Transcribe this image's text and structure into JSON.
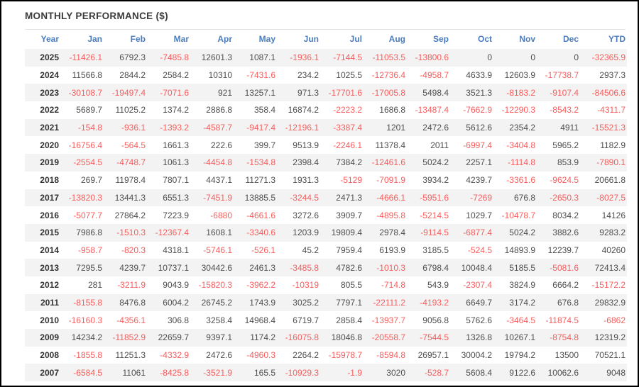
{
  "title": "MONTHLY PERFORMANCE ($)",
  "colors": {
    "header_text": "#4b7dbe",
    "negative_value": "#f75d5d",
    "positive_value": "#4e4e4e",
    "row_stripe": "#f3f3f3"
  },
  "table": {
    "columns": [
      "Year",
      "Jan",
      "Feb",
      "Mar",
      "Apr",
      "May",
      "Jun",
      "Jul",
      "Aug",
      "Sep",
      "Oct",
      "Nov",
      "Dec",
      "YTD"
    ],
    "rows": [
      {
        "year": "2025",
        "values": [
          "-11426.1",
          "6792.3",
          "-7485.8",
          "12601.3",
          "1087.1",
          "-1936.1",
          "-7144.5",
          "-11053.5",
          "-13800.6",
          "0",
          "0",
          "0",
          "-32365.9"
        ]
      },
      {
        "year": "2024",
        "values": [
          "11566.8",
          "2844.2",
          "2584.2",
          "10310",
          "-7431.6",
          "234.2",
          "1025.5",
          "-12736.4",
          "-4958.7",
          "4633.9",
          "12603.9",
          "-17738.7",
          "2937.3"
        ]
      },
      {
        "year": "2023",
        "values": [
          "-30108.7",
          "-19497.4",
          "-7071.6",
          "921",
          "13257.1",
          "971.3",
          "-17701.6",
          "-17005.8",
          "5498.4",
          "3521.3",
          "-8183.2",
          "-9107.4",
          "-84506.6"
        ]
      },
      {
        "year": "2022",
        "values": [
          "5689.7",
          "11025.2",
          "1374.2",
          "2886.8",
          "358.4",
          "16874.2",
          "-2223.2",
          "1686.8",
          "-13487.4",
          "-7662.9",
          "-12290.3",
          "-8543.2",
          "-4311.7"
        ]
      },
      {
        "year": "2021",
        "values": [
          "-154.8",
          "-936.1",
          "-1393.2",
          "-4587.7",
          "-9417.4",
          "-12196.1",
          "-3387.4",
          "1201",
          "2472.6",
          "5612.6",
          "2354.2",
          "4911",
          "-15521.3"
        ]
      },
      {
        "year": "2020",
        "values": [
          "-16756.4",
          "-564.5",
          "1661.3",
          "222.6",
          "399.7",
          "9513.9",
          "-2246.1",
          "11378.4",
          "2011",
          "-6997.4",
          "-3404.8",
          "5965.2",
          "1182.9"
        ]
      },
      {
        "year": "2019",
        "values": [
          "-2554.5",
          "-4748.7",
          "1061.3",
          "-4454.8",
          "-1534.8",
          "2398.4",
          "7384.2",
          "-12461.6",
          "5024.2",
          "2257.1",
          "-1114.8",
          "853.9",
          "-7890.1"
        ]
      },
      {
        "year": "2018",
        "values": [
          "269.7",
          "11978.4",
          "7807.1",
          "4437.1",
          "11271.3",
          "1931.3",
          "-5129",
          "-7091.9",
          "3934.2",
          "4239.7",
          "-3361.6",
          "-9624.5",
          "20661.8"
        ]
      },
      {
        "year": "2017",
        "values": [
          "-13820.3",
          "13441.3",
          "6551.3",
          "-7451.9",
          "13885.5",
          "-3244.5",
          "2471.3",
          "-4666.1",
          "-5951.6",
          "-7269",
          "676.8",
          "-2650.3",
          "-8027.5"
        ]
      },
      {
        "year": "2016",
        "values": [
          "-5077.7",
          "27864.2",
          "7223.9",
          "-6880",
          "-4661.6",
          "3272.6",
          "3909.7",
          "-4895.8",
          "-5214.5",
          "1029.7",
          "-10478.7",
          "8034.2",
          "14126"
        ]
      },
      {
        "year": "2015",
        "values": [
          "7986.8",
          "-1510.3",
          "-12367.4",
          "1608.1",
          "-3340.6",
          "1203.9",
          "19809.4",
          "2978.4",
          "-9114.5",
          "-6877.4",
          "5024.2",
          "3882.6",
          "9283.2"
        ]
      },
      {
        "year": "2014",
        "values": [
          "-958.7",
          "-820.3",
          "4318.1",
          "-5746.1",
          "-526.1",
          "45.2",
          "7959.4",
          "6193.9",
          "3185.5",
          "-524.5",
          "14893.9",
          "12239.7",
          "40260"
        ]
      },
      {
        "year": "2013",
        "values": [
          "7295.5",
          "4239.7",
          "10737.1",
          "30442.6",
          "2461.3",
          "-3485.8",
          "4782.6",
          "-1010.3",
          "6798.4",
          "10048.4",
          "5185.5",
          "-5081.6",
          "72413.4"
        ]
      },
      {
        "year": "2012",
        "values": [
          "281",
          "-3211.9",
          "9043.9",
          "-15820.3",
          "-3962.2",
          "-10319",
          "805.5",
          "-714.8",
          "543.9",
          "-2307.4",
          "3824.9",
          "6664.2",
          "-15172.2"
        ]
      },
      {
        "year": "2011",
        "values": [
          "-8155.8",
          "8476.8",
          "6004.2",
          "26745.2",
          "1743.9",
          "3025.2",
          "7797.1",
          "-22111.2",
          "-4193.2",
          "6649.7",
          "3174.2",
          "676.8",
          "29832.9"
        ]
      },
      {
        "year": "2010",
        "values": [
          "-16160.3",
          "-4356.1",
          "306.8",
          "3258.4",
          "14968.4",
          "6719.7",
          "2858.4",
          "-13937.7",
          "9056.8",
          "5762.6",
          "-3464.5",
          "-11874.5",
          "-6862"
        ]
      },
      {
        "year": "2009",
        "values": [
          "14234.2",
          "-11852.9",
          "22659.7",
          "9397.1",
          "1174.2",
          "-16075.8",
          "18046.8",
          "-20558.7",
          "-7544.5",
          "1326.8",
          "10267.1",
          "-8754.8",
          "12319.2"
        ]
      },
      {
        "year": "2008",
        "values": [
          "-1855.8",
          "11251.3",
          "-4332.9",
          "2472.6",
          "-4960.3",
          "2264.2",
          "-15978.7",
          "-8594.8",
          "26957.1",
          "30004.2",
          "19794.2",
          "13500",
          "70521.1"
        ]
      },
      {
        "year": "2007",
        "values": [
          "-6584.5",
          "11061",
          "-8425.8",
          "-3521.9",
          "165.5",
          "-10929.3",
          "-1.9",
          "3020",
          "-528.7",
          "5608.4",
          "9122.6",
          "10062.6",
          "9048"
        ]
      }
    ]
  }
}
